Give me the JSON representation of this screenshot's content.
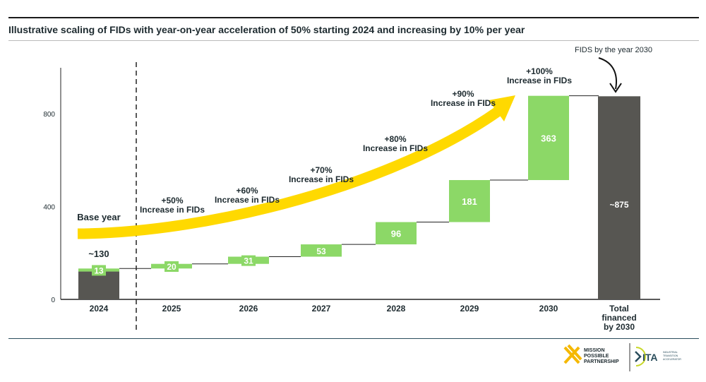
{
  "title": "Illustrative scaling of FIDs with year-on-year acceleration of 50% starting 2024 and increasing by 10% per year",
  "colors": {
    "increment": "#8cd867",
    "base": "#575652",
    "arrow": "#ffd900",
    "text": "#1d2a2f"
  },
  "chart_data": {
    "type": "bar",
    "subtype": "waterfall",
    "categories": [
      "2024",
      "2025",
      "2026",
      "2027",
      "2028",
      "2029",
      "2030",
      "Total\nfinanced\nby 2030"
    ],
    "base_value": 120,
    "base_label": "~130",
    "increments": [
      13,
      20,
      31,
      53,
      96,
      181,
      363
    ],
    "increment_labels": [
      "13",
      "20",
      "31",
      "53",
      "96",
      "181",
      "363"
    ],
    "total": 875,
    "total_label": "~875",
    "ylim": [
      0,
      960
    ],
    "yticks": [
      0,
      400,
      800
    ],
    "grid": false,
    "annotations": {
      "base_year": "Base year",
      "growth": [
        {
          "pct": "+50%",
          "text": "Increase in FIDs"
        },
        {
          "pct": "+60%",
          "text": "Increase in FIDs"
        },
        {
          "pct": "+70%",
          "text": "Increase in FIDs"
        },
        {
          "pct": "+80%",
          "text": "Increase in FIDs"
        },
        {
          "pct": "+90%",
          "text": "Increase in FIDs"
        },
        {
          "pct": "+100%",
          "text": "Increase in FIDs"
        }
      ],
      "total_callout": "FIDS by the year 2030"
    }
  },
  "logos": {
    "mpp": "MISSION POSSIBLE PARTNERSHIP",
    "ita": "ITA",
    "ita_sub": "INDUSTRIAL TRANSITION ACCELERATOR"
  }
}
